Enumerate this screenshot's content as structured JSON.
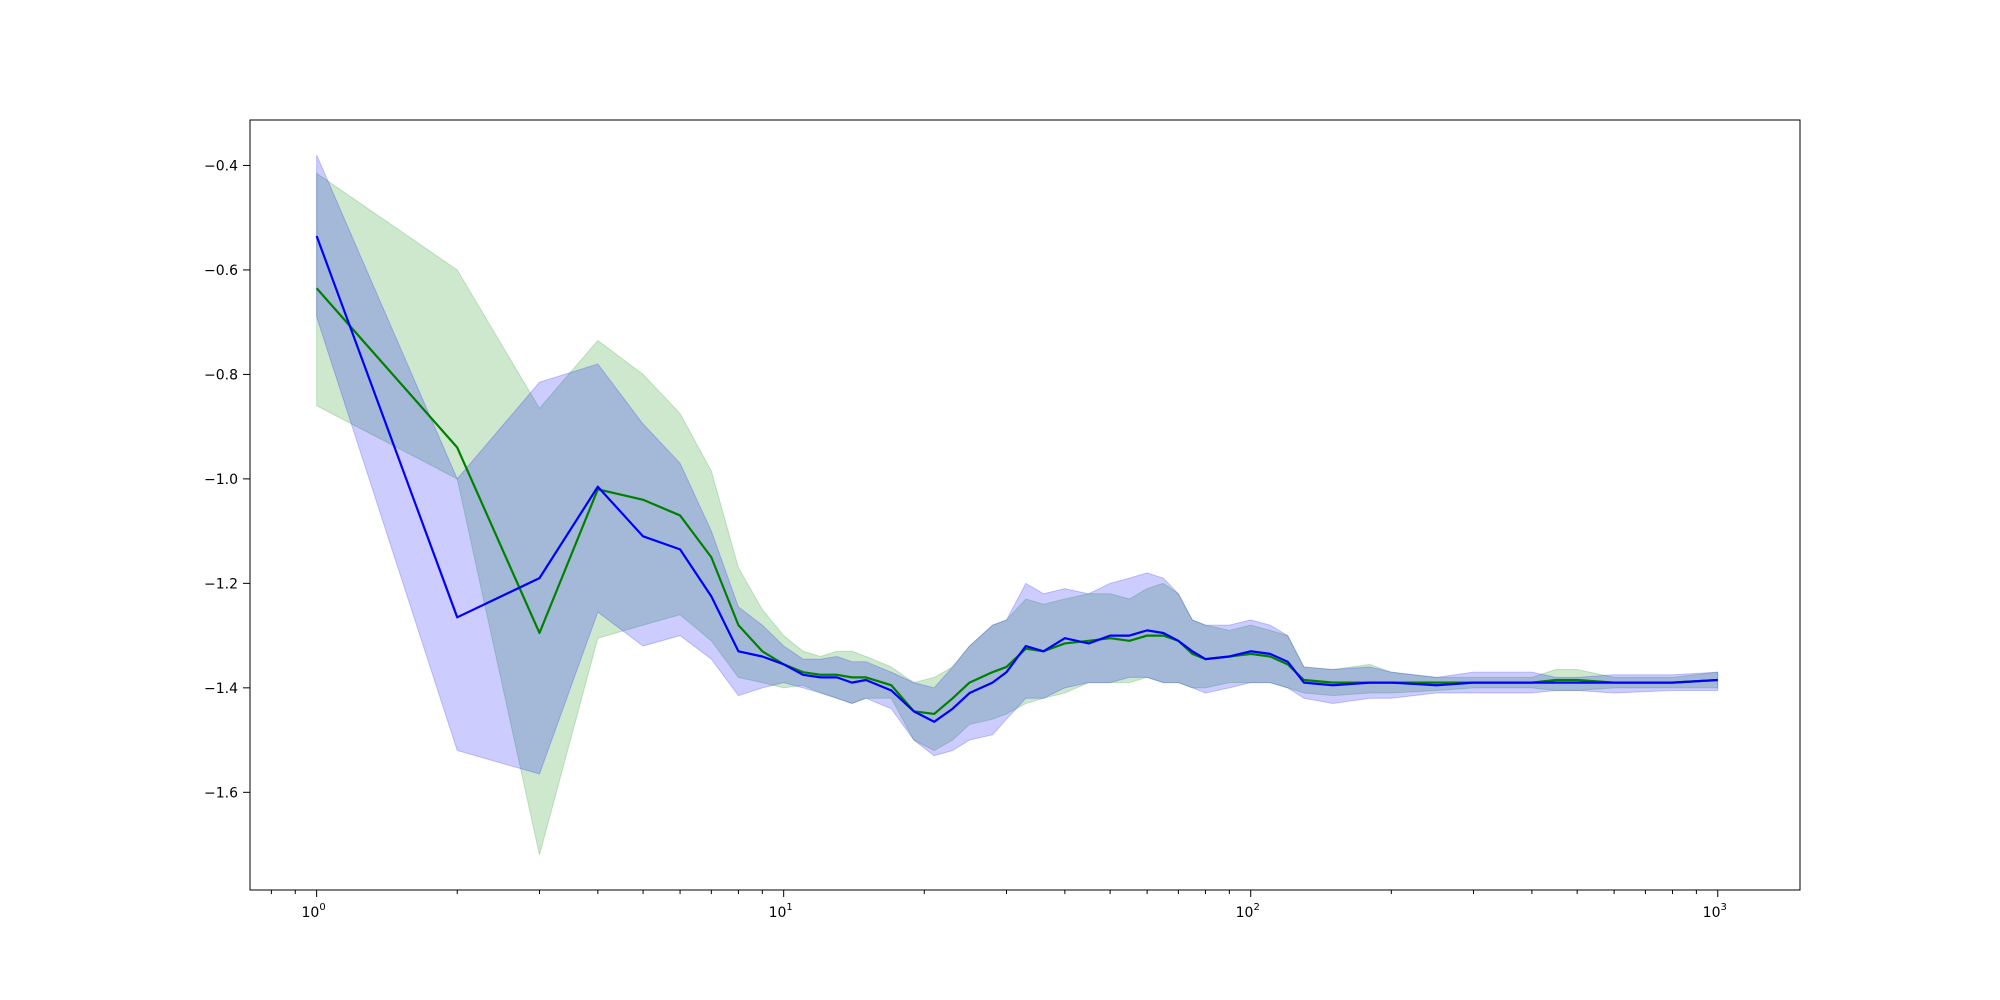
{
  "chart_data": {
    "type": "line",
    "title": "",
    "xlabel": "",
    "ylabel": "",
    "x_scale": "log",
    "xlim": [
      0.72,
      1500
    ],
    "ylim": [
      -1.787,
      -0.313
    ],
    "grid": false,
    "legend": "none",
    "x_ticks": [
      {
        "value": 1,
        "base": "10",
        "exp": "0"
      },
      {
        "value": 10,
        "base": "10",
        "exp": "1"
      },
      {
        "value": 100,
        "base": "10",
        "exp": "2"
      },
      {
        "value": 1000,
        "base": "10",
        "exp": "3"
      }
    ],
    "y_ticks": [
      {
        "value": -0.4,
        "label": "−0.4"
      },
      {
        "value": -0.6,
        "label": "−0.6"
      },
      {
        "value": -0.8,
        "label": "−0.8"
      },
      {
        "value": -1.0,
        "label": "−1.0"
      },
      {
        "value": -1.2,
        "label": "−1.2"
      },
      {
        "value": -1.4,
        "label": "−1.4"
      },
      {
        "value": -1.6,
        "label": "−1.6"
      }
    ],
    "series": [
      {
        "color": "#008000",
        "band_color": "#2ca02c",
        "band_opacity": 0.24,
        "points": [
          [
            1,
            -0.635,
            -0.86,
            -0.415
          ],
          [
            2,
            -0.94,
            -1.0,
            -0.6
          ],
          [
            3,
            -1.295,
            -1.72,
            -0.865
          ],
          [
            4,
            -1.02,
            -1.305,
            -0.735
          ],
          [
            5,
            -1.04,
            -1.28,
            -0.8
          ],
          [
            6,
            -1.07,
            -1.26,
            -0.875
          ],
          [
            7,
            -1.15,
            -1.31,
            -0.985
          ],
          [
            8,
            -1.28,
            -1.38,
            -1.17
          ],
          [
            9,
            -1.33,
            -1.39,
            -1.25
          ],
          [
            10,
            -1.355,
            -1.4,
            -1.3
          ],
          [
            11,
            -1.37,
            -1.395,
            -1.33
          ],
          [
            12,
            -1.375,
            -1.41,
            -1.34
          ],
          [
            13,
            -1.375,
            -1.42,
            -1.33
          ],
          [
            14,
            -1.38,
            -1.43,
            -1.33
          ],
          [
            15,
            -1.38,
            -1.42,
            -1.34
          ],
          [
            17,
            -1.395,
            -1.42,
            -1.36
          ],
          [
            19,
            -1.445,
            -1.5,
            -1.39
          ],
          [
            21,
            -1.45,
            -1.52,
            -1.38
          ],
          [
            23,
            -1.42,
            -1.5,
            -1.36
          ],
          [
            25,
            -1.39,
            -1.47,
            -1.32
          ],
          [
            28,
            -1.37,
            -1.46,
            -1.28
          ],
          [
            30,
            -1.36,
            -1.45,
            -1.27
          ],
          [
            33,
            -1.325,
            -1.43,
            -1.23
          ],
          [
            36,
            -1.33,
            -1.42,
            -1.24
          ],
          [
            40,
            -1.315,
            -1.41,
            -1.23
          ],
          [
            45,
            -1.31,
            -1.39,
            -1.22
          ],
          [
            50,
            -1.305,
            -1.39,
            -1.22
          ],
          [
            55,
            -1.31,
            -1.39,
            -1.23
          ],
          [
            60,
            -1.3,
            -1.38,
            -1.21
          ],
          [
            65,
            -1.3,
            -1.39,
            -1.2
          ],
          [
            70,
            -1.31,
            -1.39,
            -1.22
          ],
          [
            75,
            -1.335,
            -1.4,
            -1.27
          ],
          [
            80,
            -1.345,
            -1.4,
            -1.28
          ],
          [
            90,
            -1.34,
            -1.39,
            -1.29
          ],
          [
            100,
            -1.335,
            -1.39,
            -1.28
          ],
          [
            110,
            -1.34,
            -1.39,
            -1.29
          ],
          [
            120,
            -1.355,
            -1.4,
            -1.3
          ],
          [
            130,
            -1.385,
            -1.41,
            -1.36
          ],
          [
            150,
            -1.39,
            -1.415,
            -1.365
          ],
          [
            180,
            -1.39,
            -1.41,
            -1.355
          ],
          [
            200,
            -1.39,
            -1.41,
            -1.37
          ],
          [
            250,
            -1.39,
            -1.405,
            -1.38
          ],
          [
            300,
            -1.39,
            -1.4,
            -1.38
          ],
          [
            400,
            -1.39,
            -1.4,
            -1.38
          ],
          [
            450,
            -1.385,
            -1.405,
            -1.365
          ],
          [
            500,
            -1.385,
            -1.405,
            -1.365
          ],
          [
            600,
            -1.39,
            -1.4,
            -1.38
          ],
          [
            800,
            -1.39,
            -1.4,
            -1.38
          ],
          [
            1000,
            -1.385,
            -1.4,
            -1.37
          ]
        ]
      },
      {
        "color": "#0000ff",
        "band_color": "#0000ff",
        "band_opacity": 0.2,
        "points": [
          [
            1,
            -0.535,
            -0.69,
            -0.38
          ],
          [
            2,
            -1.265,
            -1.52,
            -1.0
          ],
          [
            3,
            -1.19,
            -1.565,
            -0.815
          ],
          [
            4,
            -1.015,
            -1.255,
            -0.78
          ],
          [
            5,
            -1.11,
            -1.32,
            -0.895
          ],
          [
            6,
            -1.135,
            -1.3,
            -0.97
          ],
          [
            7,
            -1.225,
            -1.345,
            -1.1
          ],
          [
            8,
            -1.33,
            -1.415,
            -1.245
          ],
          [
            9,
            -1.34,
            -1.4,
            -1.28
          ],
          [
            10,
            -1.355,
            -1.39,
            -1.32
          ],
          [
            11,
            -1.375,
            -1.4,
            -1.345
          ],
          [
            12,
            -1.38,
            -1.41,
            -1.345
          ],
          [
            13,
            -1.38,
            -1.42,
            -1.34
          ],
          [
            14,
            -1.39,
            -1.43,
            -1.35
          ],
          [
            15,
            -1.385,
            -1.42,
            -1.35
          ],
          [
            17,
            -1.405,
            -1.44,
            -1.37
          ],
          [
            19,
            -1.445,
            -1.5,
            -1.39
          ],
          [
            21,
            -1.465,
            -1.53,
            -1.4
          ],
          [
            23,
            -1.44,
            -1.52,
            -1.36
          ],
          [
            25,
            -1.41,
            -1.5,
            -1.32
          ],
          [
            28,
            -1.39,
            -1.49,
            -1.28
          ],
          [
            30,
            -1.37,
            -1.46,
            -1.27
          ],
          [
            33,
            -1.32,
            -1.42,
            -1.2
          ],
          [
            36,
            -1.33,
            -1.42,
            -1.22
          ],
          [
            40,
            -1.305,
            -1.4,
            -1.21
          ],
          [
            45,
            -1.315,
            -1.39,
            -1.22
          ],
          [
            50,
            -1.3,
            -1.39,
            -1.2
          ],
          [
            55,
            -1.3,
            -1.38,
            -1.19
          ],
          [
            60,
            -1.29,
            -1.38,
            -1.18
          ],
          [
            65,
            -1.295,
            -1.39,
            -1.19
          ],
          [
            70,
            -1.31,
            -1.39,
            -1.22
          ],
          [
            75,
            -1.33,
            -1.4,
            -1.27
          ],
          [
            80,
            -1.345,
            -1.41,
            -1.28
          ],
          [
            90,
            -1.34,
            -1.4,
            -1.28
          ],
          [
            100,
            -1.33,
            -1.39,
            -1.27
          ],
          [
            110,
            -1.335,
            -1.39,
            -1.28
          ],
          [
            120,
            -1.35,
            -1.4,
            -1.3
          ],
          [
            130,
            -1.39,
            -1.42,
            -1.36
          ],
          [
            150,
            -1.395,
            -1.43,
            -1.365
          ],
          [
            180,
            -1.39,
            -1.42,
            -1.36
          ],
          [
            200,
            -1.39,
            -1.42,
            -1.37
          ],
          [
            250,
            -1.395,
            -1.41,
            -1.38
          ],
          [
            300,
            -1.39,
            -1.41,
            -1.37
          ],
          [
            400,
            -1.39,
            -1.41,
            -1.37
          ],
          [
            450,
            -1.39,
            -1.405,
            -1.38
          ],
          [
            500,
            -1.39,
            -1.405,
            -1.38
          ],
          [
            600,
            -1.39,
            -1.41,
            -1.375
          ],
          [
            800,
            -1.39,
            -1.405,
            -1.375
          ],
          [
            1000,
            -1.385,
            -1.405,
            -1.37
          ]
        ]
      }
    ]
  }
}
